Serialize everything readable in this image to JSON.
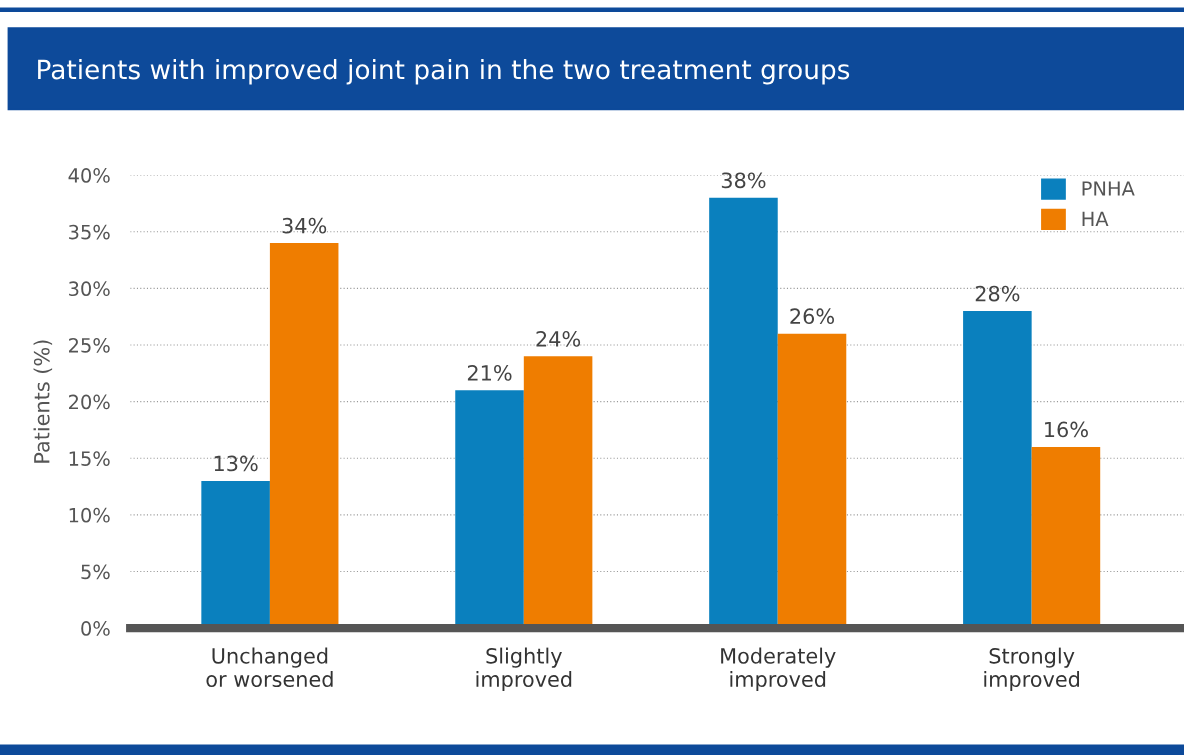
{
  "chart_data": {
    "type": "bar",
    "title": "Patients with improved joint pain in the two treatment groups",
    "ylabel": "Patients (%)",
    "categories": [
      "Unchanged\nor worsened",
      "Slightly\nimproved",
      "Moderately\nimproved",
      "Strongly\nimproved"
    ],
    "series": [
      {
        "name": "PNHA",
        "color": "#0a80be",
        "values": [
          13,
          21,
          38,
          28
        ]
      },
      {
        "name": "HA",
        "color": "#ef7d00",
        "values": [
          34,
          24,
          26,
          16
        ]
      }
    ],
    "ylim": [
      0,
      40
    ],
    "yticks": [
      {
        "value": 0,
        "label": "0%"
      },
      {
        "value": 5,
        "label": "5%"
      },
      {
        "value": 10,
        "label": "10%"
      },
      {
        "value": 15,
        "label": "15%"
      },
      {
        "value": 20,
        "label": "20%"
      },
      {
        "value": 25,
        "label": "25%"
      },
      {
        "value": 30,
        "label": "30%"
      },
      {
        "value": 35,
        "label": "35%"
      },
      {
        "value": 40,
        "label": "40%"
      }
    ],
    "value_labels": [
      [
        "13%",
        "21%",
        "38%",
        "28%"
      ],
      [
        "34%",
        "24%",
        "26%",
        "16%"
      ]
    ],
    "grid": "y",
    "legend": "top right"
  }
}
